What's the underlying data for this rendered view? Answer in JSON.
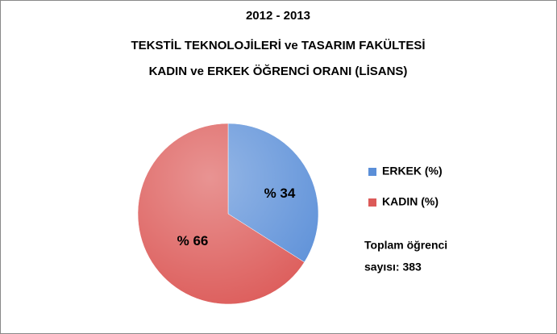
{
  "chart_data": {
    "type": "pie",
    "title": [
      "2012 - 2013",
      "TEKSTİL TEKNOLOJİLERİ ve TASARIM FAKÜLTESİ",
      "KADIN ve ERKEK ÖĞRENCİ ORANI (LİSANS)"
    ],
    "categories": [
      "ERKEK (%)",
      "KADIN (%)"
    ],
    "values": [
      34,
      66
    ],
    "value_labels": [
      "% 34",
      "% 66"
    ],
    "colors": [
      "#5b8fd8",
      "#dc5a58"
    ],
    "annotation": [
      "Toplam öğrenci",
      "sayısı: 383"
    ],
    "legend": "right"
  }
}
